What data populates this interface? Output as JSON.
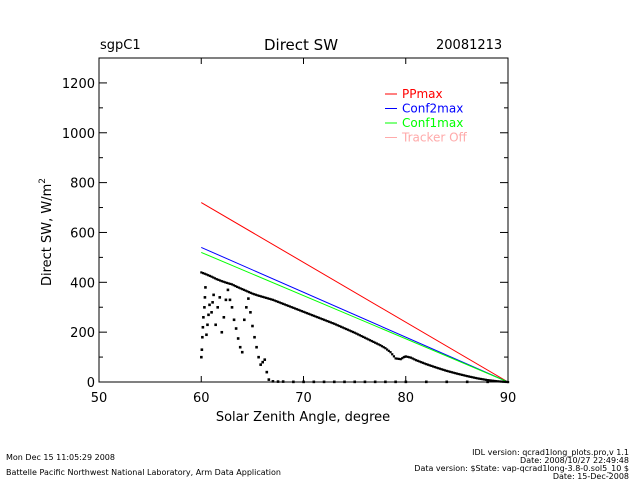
{
  "header": {
    "site": "sgpC1",
    "title": "Direct SW",
    "date": "20081213"
  },
  "footer": {
    "timestamp": "Mon Dec 15 11:05:29 2008",
    "institution": "Battelle Pacific Northwest National Laboratory, Arm Data Application",
    "idl_version": "IDL version: qcrad1long_plots.pro,v 1.1",
    "idl_date": "Date: 2008/10/27 22:49:48",
    "data_version": "Data version: $State: vap-qcrad1long-3.8-0.sol5_10 $",
    "data_date": "Date: 15-Dec-2008"
  },
  "chart_data": {
    "type": "line",
    "title": "Direct SW",
    "xlabel": "Solar Zenith Angle, degree",
    "ylabel": "Direct SW, W/m",
    "ylabel_superscript": "2",
    "xlim": [
      50,
      90
    ],
    "ylim": [
      0,
      1300
    ],
    "xticks": [
      50,
      60,
      70,
      80,
      90
    ],
    "yticks": [
      0,
      200,
      400,
      600,
      800,
      1000,
      1200
    ],
    "grid": false,
    "legend_position": "top-right",
    "series": [
      {
        "name": "PPmax",
        "color": "#ff0000",
        "x": [
          60,
          90
        ],
        "y": [
          720,
          0
        ]
      },
      {
        "name": "Conf2max",
        "color": "#0000ff",
        "x": [
          60,
          90
        ],
        "y": [
          540,
          0
        ]
      },
      {
        "name": "Conf1max",
        "color": "#00ff00",
        "x": [
          60,
          90
        ],
        "y": [
          520,
          0
        ]
      },
      {
        "name": "Tracker Off",
        "color": "#ffaaaa",
        "x": [],
        "y": []
      }
    ],
    "observations": {
      "color": "#000000",
      "main": [
        [
          60.0,
          440
        ],
        [
          60.5,
          432
        ],
        [
          61.0,
          423
        ],
        [
          61.5,
          413
        ],
        [
          62.0,
          405
        ],
        [
          62.5,
          398
        ],
        [
          63.0,
          392
        ],
        [
          63.5,
          382
        ],
        [
          64.0,
          373
        ],
        [
          64.5,
          364
        ],
        [
          65.0,
          355
        ],
        [
          65.5,
          348
        ],
        [
          66.0,
          342
        ],
        [
          66.5,
          336
        ],
        [
          67.0,
          330
        ],
        [
          67.5,
          322
        ],
        [
          68.0,
          314
        ],
        [
          68.5,
          306
        ],
        [
          69.0,
          298
        ],
        [
          69.5,
          290
        ],
        [
          70.0,
          282
        ],
        [
          70.5,
          274
        ],
        [
          71.0,
          266
        ],
        [
          71.5,
          258
        ],
        [
          72.0,
          250
        ],
        [
          72.5,
          242
        ],
        [
          73.0,
          234
        ],
        [
          73.5,
          225
        ],
        [
          74.0,
          216
        ],
        [
          74.5,
          207
        ],
        [
          75.0,
          198
        ],
        [
          75.5,
          188
        ],
        [
          76.0,
          178
        ],
        [
          76.5,
          168
        ],
        [
          77.0,
          158
        ],
        [
          77.5,
          148
        ],
        [
          78.0,
          136
        ],
        [
          78.5,
          120
        ],
        [
          79.0,
          95
        ],
        [
          79.5,
          92
        ],
        [
          79.8,
          100
        ],
        [
          80.0,
          103
        ],
        [
          80.5,
          98
        ],
        [
          81.0,
          88
        ],
        [
          82.0,
          72
        ],
        [
          83.0,
          58
        ],
        [
          84.0,
          45
        ],
        [
          85.0,
          34
        ],
        [
          86.0,
          24
        ],
        [
          87.0,
          15
        ],
        [
          88.0,
          8
        ],
        [
          89.0,
          3
        ],
        [
          90.0,
          0
        ]
      ],
      "scattered": [
        [
          60.0,
          100
        ],
        [
          60.05,
          130
        ],
        [
          60.1,
          180
        ],
        [
          60.15,
          220
        ],
        [
          60.2,
          260
        ],
        [
          60.3,
          300
        ],
        [
          60.35,
          340
        ],
        [
          60.4,
          380
        ],
        [
          60.5,
          190
        ],
        [
          60.6,
          230
        ],
        [
          60.7,
          270
        ],
        [
          60.8,
          310
        ],
        [
          61.0,
          280
        ],
        [
          61.1,
          320
        ],
        [
          61.2,
          350
        ],
        [
          61.4,
          230
        ],
        [
          61.6,
          300
        ],
        [
          61.8,
          340
        ],
        [
          62.0,
          200
        ],
        [
          62.2,
          260
        ],
        [
          62.4,
          330
        ],
        [
          62.6,
          370
        ],
        [
          62.8,
          330
        ],
        [
          63.0,
          300
        ],
        [
          63.2,
          250
        ],
        [
          63.4,
          215
        ],
        [
          63.6,
          175
        ],
        [
          63.8,
          140
        ],
        [
          64.0,
          120
        ],
        [
          64.2,
          250
        ],
        [
          64.4,
          300
        ],
        [
          64.6,
          335
        ],
        [
          64.8,
          280
        ],
        [
          65.0,
          225
        ],
        [
          65.2,
          180
        ],
        [
          65.4,
          140
        ],
        [
          65.6,
          100
        ],
        [
          65.8,
          70
        ],
        [
          66.0,
          80
        ],
        [
          66.2,
          90
        ],
        [
          66.4,
          40
        ],
        [
          66.6,
          10
        ],
        [
          67.0,
          3
        ],
        [
          67.5,
          2
        ],
        [
          68.0,
          2
        ],
        [
          69.0,
          1
        ],
        [
          70.0,
          1
        ],
        [
          71.0,
          1
        ],
        [
          72.0,
          1
        ],
        [
          73.0,
          1
        ],
        [
          74.0,
          1
        ],
        [
          75.0,
          1
        ],
        [
          76.0,
          1
        ],
        [
          77.0,
          1
        ],
        [
          78.0,
          1
        ],
        [
          79.0,
          1
        ],
        [
          80.0,
          1
        ],
        [
          82.0,
          1
        ],
        [
          84.0,
          1
        ],
        [
          86.0,
          1
        ],
        [
          88.0,
          1
        ]
      ]
    }
  }
}
